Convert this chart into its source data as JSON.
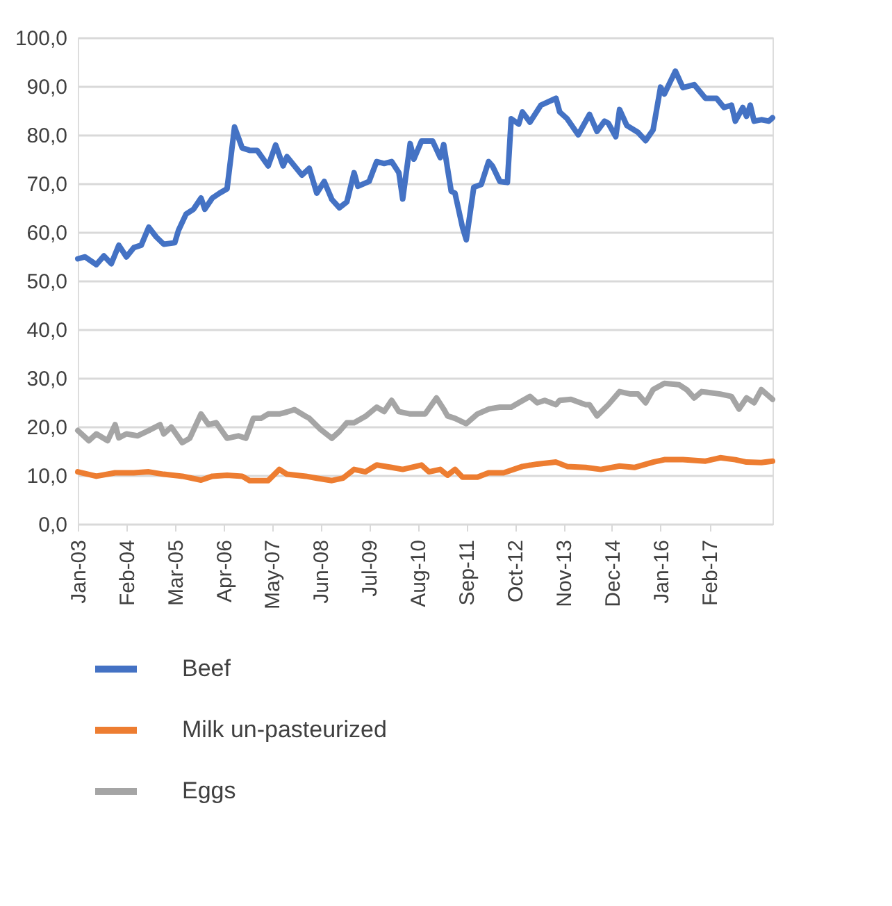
{
  "chart_data": {
    "type": "line",
    "series": [
      {
        "name": "Beef",
        "color": "#4472c4",
        "x": [
          "2003-01",
          "2003-03",
          "2003-06",
          "2003-08",
          "2003-10",
          "2003-12",
          "2004-02",
          "2004-04",
          "2004-06",
          "2004-08",
          "2004-10",
          "2004-12",
          "2005-03",
          "2005-04",
          "2005-06",
          "2005-08",
          "2005-10",
          "2005-11",
          "2006-01",
          "2006-03",
          "2006-05",
          "2006-07",
          "2006-09",
          "2006-11",
          "2007-01",
          "2007-04",
          "2007-06",
          "2007-08",
          "2007-09",
          "2007-11",
          "2008-01",
          "2008-03",
          "2008-05",
          "2008-07",
          "2008-09",
          "2008-11",
          "2009-01",
          "2009-03",
          "2009-04",
          "2009-07",
          "2009-09",
          "2009-11",
          "2010-01",
          "2010-03",
          "2010-04",
          "2010-06",
          "2010-07",
          "2010-09",
          "2010-12",
          "2011-02",
          "2011-03",
          "2011-05",
          "2011-06",
          "2011-08",
          "2011-09",
          "2011-11",
          "2012-01",
          "2012-03",
          "2012-04",
          "2012-06",
          "2012-08",
          "2012-09",
          "2012-11",
          "2012-12",
          "2013-02",
          "2013-05",
          "2013-09",
          "2013-10",
          "2013-12",
          "2014-03",
          "2014-06",
          "2014-08",
          "2014-10",
          "2014-11",
          "2015-01",
          "2015-02",
          "2015-04",
          "2015-07",
          "2015-09",
          "2015-11",
          "2016-01",
          "2016-02",
          "2016-05",
          "2016-07",
          "2016-10",
          "2017-01",
          "2017-04",
          "2017-06",
          "2017-08",
          "2017-09",
          "2017-11",
          "2017-12",
          "2018-01",
          "2018-02",
          "2018-04",
          "2018-06",
          "2018-07"
        ],
        "values": [
          54.5,
          54.9,
          53.3,
          55.1,
          53.5,
          57.3,
          54.9,
          56.8,
          57.3,
          61.0,
          59.0,
          57.5,
          57.8,
          60.4,
          63.7,
          64.7,
          67.0,
          64.7,
          67.0,
          68.0,
          68.9,
          81.6,
          77.3,
          76.8,
          76.8,
          73.6,
          77.9,
          73.6,
          75.5,
          73.6,
          71.7,
          73.1,
          68.0,
          70.4,
          66.7,
          65.0,
          66.2,
          72.2,
          69.4,
          70.4,
          74.5,
          74.1,
          74.5,
          72.2,
          66.8,
          78.2,
          75.0,
          78.7,
          78.7,
          75.3,
          78.0,
          68.4,
          68.0,
          61.0,
          58.4,
          69.2,
          69.8,
          74.5,
          73.6,
          70.4,
          70.2,
          83.3,
          82.2,
          84.7,
          82.6,
          86.1,
          87.5,
          84.7,
          83.3,
          80.0,
          84.2,
          80.7,
          82.8,
          82.4,
          79.6,
          85.2,
          81.9,
          80.5,
          78.8,
          81.0,
          89.8,
          88.4,
          93.1,
          89.7,
          90.3,
          87.5,
          87.5,
          85.6,
          86.1,
          82.8,
          85.6,
          83.8,
          86.1,
          82.8,
          83.1,
          82.8,
          83.5
        ]
      },
      {
        "name": "Milk un-pasteurized",
        "color": "#ed7d31",
        "x": [
          "2003-01",
          "2003-06",
          "2003-11",
          "2004-04",
          "2004-08",
          "2004-12",
          "2005-05",
          "2005-10",
          "2006-01",
          "2006-05",
          "2006-09",
          "2006-11",
          "2007-04",
          "2007-07",
          "2007-09",
          "2008-02",
          "2008-05",
          "2008-09",
          "2008-12",
          "2009-03",
          "2009-06",
          "2009-09",
          "2010-01",
          "2010-04",
          "2010-09",
          "2010-11",
          "2011-02",
          "2011-04",
          "2011-06",
          "2011-08",
          "2011-12",
          "2012-03",
          "2012-07",
          "2012-12",
          "2013-04",
          "2013-09",
          "2013-12",
          "2014-05",
          "2014-09",
          "2015-02",
          "2015-06",
          "2015-11",
          "2016-02",
          "2016-07",
          "2017-01",
          "2017-05",
          "2017-09",
          "2017-12",
          "2018-04",
          "2018-07"
        ],
        "values": [
          10.7,
          9.8,
          10.5,
          10.5,
          10.7,
          10.2,
          9.8,
          9.0,
          9.8,
          10.0,
          9.8,
          8.9,
          8.9,
          11.2,
          10.2,
          9.8,
          9.4,
          8.9,
          9.4,
          11.2,
          10.7,
          12.1,
          11.6,
          11.2,
          12.1,
          10.7,
          11.2,
          10.0,
          11.2,
          9.6,
          9.6,
          10.5,
          10.5,
          11.8,
          12.3,
          12.7,
          11.8,
          11.6,
          11.2,
          11.9,
          11.6,
          12.7,
          13.2,
          13.2,
          12.9,
          13.6,
          13.2,
          12.7,
          12.6,
          12.9
        ]
      },
      {
        "name": "Eggs",
        "color": "#a5a5a5",
        "x": [
          "2003-01",
          "2003-04",
          "2003-06",
          "2003-09",
          "2003-11",
          "2003-12",
          "2004-02",
          "2004-05",
          "2004-08",
          "2004-11",
          "2004-12",
          "2005-02",
          "2005-05",
          "2005-07",
          "2005-10",
          "2005-12",
          "2006-02",
          "2006-05",
          "2006-08",
          "2006-10",
          "2006-12",
          "2007-02",
          "2007-04",
          "2007-07",
          "2007-09",
          "2007-11",
          "2008-02",
          "2008-03",
          "2008-06",
          "2008-09",
          "2008-11",
          "2009-01",
          "2009-03",
          "2009-06",
          "2009-09",
          "2009-11",
          "2010-01",
          "2010-03",
          "2010-06",
          "2010-10",
          "2011-01",
          "2011-03",
          "2011-04",
          "2011-06",
          "2011-09",
          "2011-12",
          "2012-03",
          "2012-06",
          "2012-09",
          "2012-11",
          "2013-02",
          "2013-04",
          "2013-06",
          "2013-09",
          "2013-10",
          "2014-01",
          "2014-05",
          "2014-06",
          "2014-08",
          "2014-11",
          "2015-02",
          "2015-05",
          "2015-07",
          "2015-09",
          "2015-11",
          "2016-02",
          "2016-06",
          "2016-08",
          "2016-10",
          "2016-12",
          "2017-05",
          "2017-08",
          "2017-10",
          "2017-12",
          "2018-02",
          "2018-04",
          "2018-07"
        ],
        "values": [
          19.2,
          17.1,
          18.5,
          17.1,
          20.4,
          17.7,
          18.5,
          18.1,
          19.2,
          20.4,
          18.5,
          19.9,
          16.7,
          17.6,
          22.6,
          20.4,
          20.8,
          17.6,
          18.1,
          17.6,
          21.7,
          21.7,
          22.6,
          22.6,
          23.0,
          23.5,
          22.1,
          21.7,
          19.4,
          17.6,
          19.0,
          20.8,
          20.8,
          22.1,
          24.0,
          23.1,
          25.4,
          23.1,
          22.6,
          22.6,
          25.9,
          23.6,
          22.2,
          21.7,
          20.6,
          22.6,
          23.6,
          24.0,
          24.0,
          24.9,
          26.2,
          24.9,
          25.4,
          24.5,
          25.4,
          25.6,
          24.5,
          24.5,
          22.2,
          24.5,
          27.2,
          26.7,
          26.7,
          24.9,
          27.6,
          28.9,
          28.6,
          27.6,
          25.9,
          27.2,
          26.7,
          26.2,
          23.6,
          25.9,
          24.9,
          27.6,
          25.6
        ]
      }
    ],
    "xlim": [
      "2003-01",
      "2018-07"
    ],
    "xticks": [
      {
        "value": "2003-01",
        "label": "Jan-03"
      },
      {
        "value": "2004-02",
        "label": "Feb-04"
      },
      {
        "value": "2005-03",
        "label": "Mar-05"
      },
      {
        "value": "2006-04",
        "label": "Apr-06"
      },
      {
        "value": "2007-05",
        "label": "May-07"
      },
      {
        "value": "2008-06",
        "label": "Jun-08"
      },
      {
        "value": "2009-07",
        "label": "Jul-09"
      },
      {
        "value": "2010-08",
        "label": "Aug-10"
      },
      {
        "value": "2011-09",
        "label": "Sep-11"
      },
      {
        "value": "2012-10",
        "label": "Oct-12"
      },
      {
        "value": "2013-11",
        "label": "Nov-13"
      },
      {
        "value": "2014-12",
        "label": "Dec-14"
      },
      {
        "value": "2016-01",
        "label": "Jan-16"
      },
      {
        "value": "2017-02",
        "label": "Feb-17"
      }
    ],
    "ylim": [
      0,
      100
    ],
    "yticks": [
      {
        "value": 0,
        "label": "0,0"
      },
      {
        "value": 10,
        "label": "10,0"
      },
      {
        "value": 20,
        "label": "20,0"
      },
      {
        "value": 30,
        "label": "30,0"
      },
      {
        "value": 40,
        "label": "40,0"
      },
      {
        "value": 50,
        "label": "50,0"
      },
      {
        "value": 60,
        "label": "60,0"
      },
      {
        "value": 70,
        "label": "70,0"
      },
      {
        "value": 80,
        "label": "80,0"
      },
      {
        "value": 90,
        "label": "90,0"
      },
      {
        "value": 100,
        "label": "100,0"
      }
    ],
    "grid": "y",
    "legend": "bottom",
    "marker": "none",
    "line_style": "solid"
  }
}
